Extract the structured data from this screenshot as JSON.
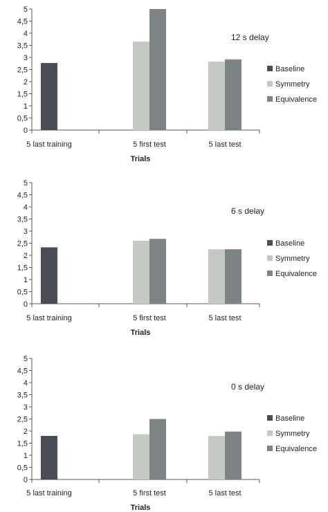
{
  "chart_data": [
    {
      "type": "bar",
      "title": "12 s delay",
      "xlabel": "Trials",
      "ylabel": "",
      "ylim": [
        0,
        5
      ],
      "yticks": [
        "0",
        "0,5",
        "1",
        "1,5",
        "2",
        "2,5",
        "3",
        "3,5",
        "4",
        "4,5",
        "5"
      ],
      "categories": [
        "5 last training",
        "5 first test",
        "5 last test"
      ],
      "series": [
        {
          "name": "Baseline",
          "color": "#4a4d55",
          "values": [
            2.77,
            null,
            null
          ]
        },
        {
          "name": "Symmetry",
          "color": "#c5c9c3",
          "values": [
            null,
            3.65,
            2.83
          ]
        },
        {
          "name": "Equivalence",
          "color": "#7c8486",
          "values": [
            null,
            5.0,
            2.92
          ]
        }
      ],
      "grid": false,
      "legend": "right"
    },
    {
      "type": "bar",
      "title": "6 s delay",
      "xlabel": "Trials",
      "ylabel": "",
      "ylim": [
        0,
        5
      ],
      "yticks": [
        "0",
        "0,5",
        "1",
        "1,5",
        "2",
        "2,5",
        "3",
        "3,5",
        "4",
        "4,5",
        "5"
      ],
      "categories": [
        "5 last training",
        "5 first test",
        "5 last test"
      ],
      "series": [
        {
          "name": "Baseline",
          "color": "#4a4d55",
          "values": [
            2.33,
            null,
            null
          ]
        },
        {
          "name": "Symmetry",
          "color": "#c5c9c3",
          "values": [
            null,
            2.6,
            2.25
          ]
        },
        {
          "name": "Equivalence",
          "color": "#7c8486",
          "values": [
            null,
            2.68,
            2.25
          ]
        }
      ],
      "grid": false,
      "legend": "right"
    },
    {
      "type": "bar",
      "title": "0 s delay",
      "xlabel": "Trials",
      "ylabel": "",
      "ylim": [
        0,
        5
      ],
      "yticks": [
        "0",
        "0,5",
        "1",
        "1,5",
        "2",
        "2,5",
        "3",
        "3,5",
        "4",
        "4,5",
        "5"
      ],
      "categories": [
        "5 last training",
        "5 first test",
        "5 last test"
      ],
      "series": [
        {
          "name": "Baseline",
          "color": "#4a4d55",
          "values": [
            1.8,
            null,
            null
          ]
        },
        {
          "name": "Symmetry",
          "color": "#c5c9c3",
          "values": [
            null,
            1.87,
            1.8
          ]
        },
        {
          "name": "Equivalence",
          "color": "#7c8486",
          "values": [
            null,
            2.5,
            1.98
          ]
        }
      ],
      "grid": false,
      "legend": "right"
    }
  ]
}
